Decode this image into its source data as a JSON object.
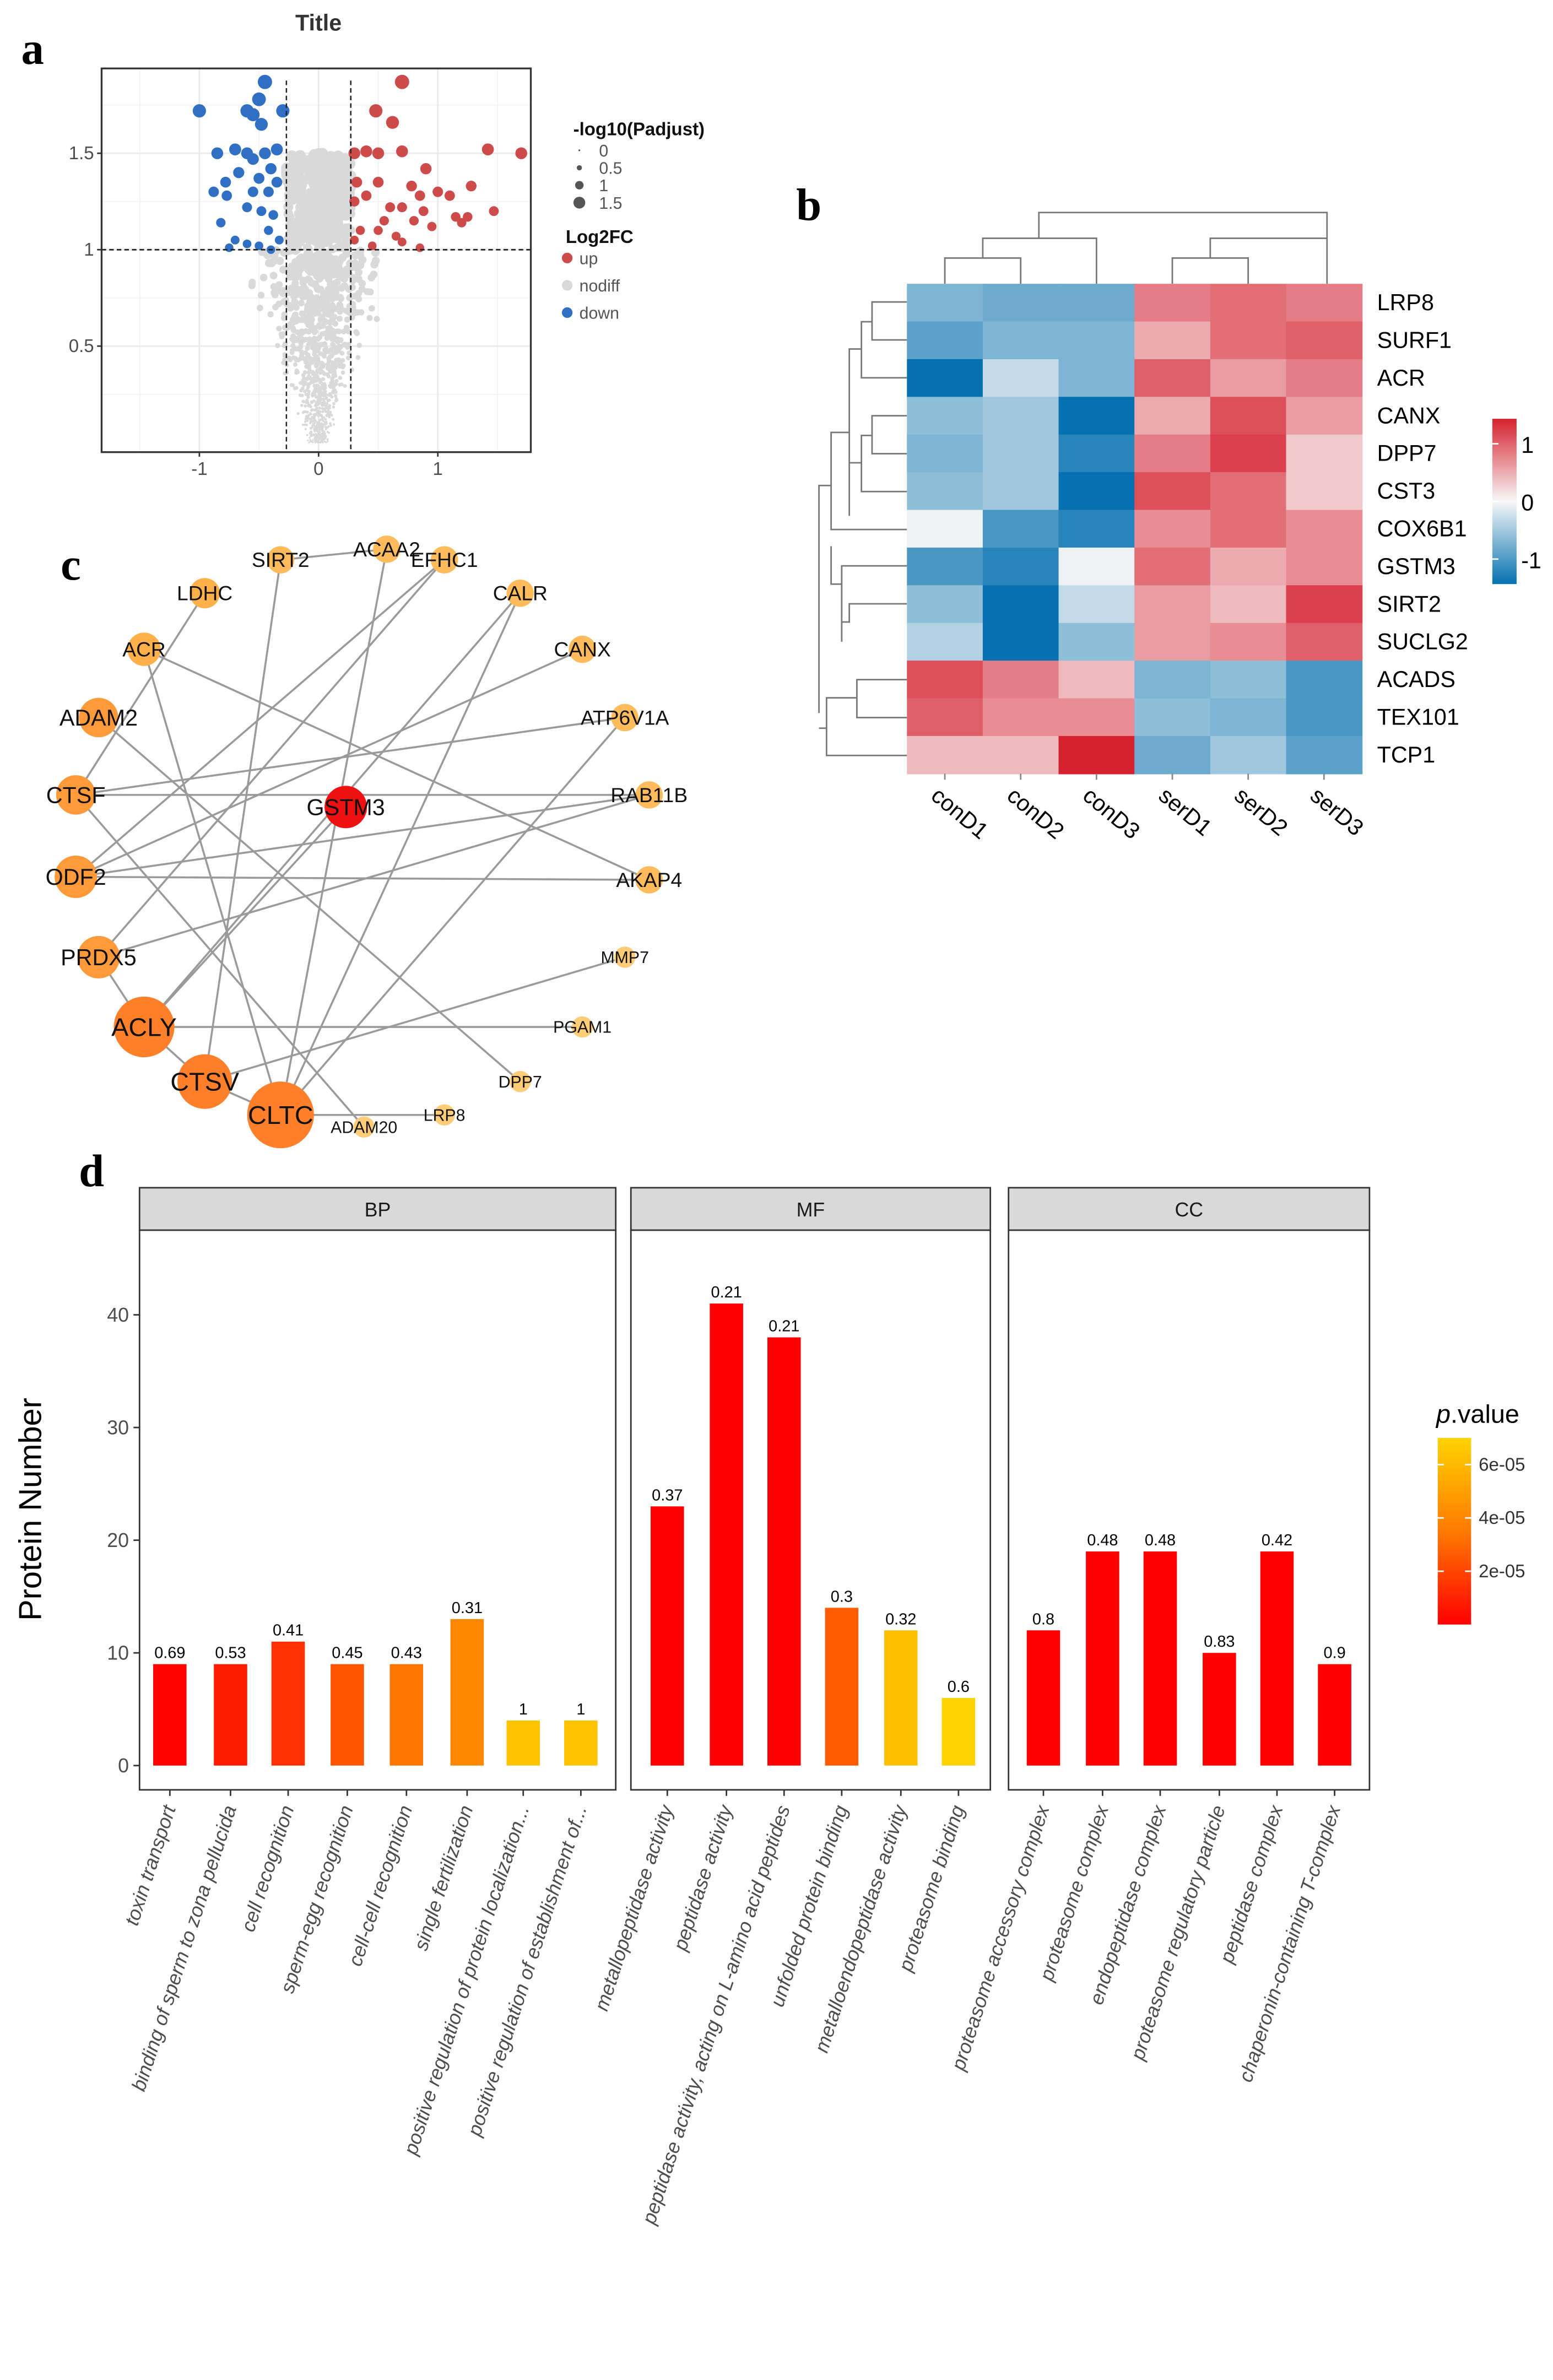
{
  "panel_letters": {
    "a": "a",
    "b": "b",
    "c": "c",
    "d": "d"
  },
  "chart_data": [
    {
      "type": "scatter",
      "panel": "a",
      "title": "Title",
      "xlabel": "",
      "ylabel": "",
      "xlim": [
        -1.82,
        1.78
      ],
      "ylim": [
        -0.05,
        1.94
      ],
      "xticks": [
        "-1",
        "0",
        "1"
      ],
      "xtick_values": [
        -1,
        0,
        1
      ],
      "yticks": [
        "0.5",
        "1",
        "1.5"
      ],
      "ytick_values": [
        0.5,
        1,
        1.5
      ],
      "thresholds": {
        "log2fc": [
          -0.27,
          0.27
        ],
        "neglog10_padj": 1
      },
      "legend_size": {
        "title": "-log10(Padjust)",
        "items": [
          "0",
          "0.5",
          "1",
          "1.5"
        ],
        "values": [
          0,
          0.5,
          1,
          1.5
        ]
      },
      "legend_color": {
        "title": "Log2FC",
        "items": [
          {
            "label": "up",
            "color": "#cd4b4b"
          },
          {
            "label": "nodiff",
            "color": "#d9d9d9"
          },
          {
            "label": "down",
            "color": "#2f6fc4"
          }
        ]
      },
      "grid": true,
      "points_down": [
        [
          -0.45,
          1.87
        ],
        [
          -0.5,
          1.78
        ],
        [
          -1.0,
          1.72
        ],
        [
          -0.6,
          1.72
        ],
        [
          -0.55,
          1.7
        ],
        [
          -0.3,
          1.72
        ],
        [
          -0.48,
          1.65
        ],
        [
          -0.85,
          1.5
        ],
        [
          -0.7,
          1.52
        ],
        [
          -0.6,
          1.5
        ],
        [
          -0.45,
          1.5
        ],
        [
          -0.35,
          1.52
        ],
        [
          -0.55,
          1.47
        ],
        [
          -0.4,
          1.42
        ],
        [
          -0.67,
          1.4
        ],
        [
          -0.78,
          1.35
        ],
        [
          -0.5,
          1.37
        ],
        [
          -0.35,
          1.35
        ],
        [
          -0.88,
          1.3
        ],
        [
          -0.77,
          1.28
        ],
        [
          -0.55,
          1.3
        ],
        [
          -0.42,
          1.3
        ],
        [
          -0.6,
          1.22
        ],
        [
          -0.48,
          1.2
        ],
        [
          -0.38,
          1.18
        ],
        [
          -0.82,
          1.14
        ],
        [
          -0.42,
          1.1
        ],
        [
          -0.7,
          1.05
        ],
        [
          -0.6,
          1.03
        ],
        [
          -0.75,
          1.01
        ],
        [
          -0.5,
          1.02
        ],
        [
          -0.33,
          1.05
        ],
        [
          -0.4,
          1.0
        ]
      ],
      "points_up": [
        [
          0.7,
          1.87
        ],
        [
          0.48,
          1.72
        ],
        [
          0.62,
          1.66
        ],
        [
          0.3,
          1.5
        ],
        [
          0.4,
          1.51
        ],
        [
          0.5,
          1.5
        ],
        [
          0.7,
          1.51
        ],
        [
          1.42,
          1.52
        ],
        [
          1.7,
          1.5
        ],
        [
          0.9,
          1.42
        ],
        [
          0.32,
          1.35
        ],
        [
          0.5,
          1.35
        ],
        [
          0.78,
          1.33
        ],
        [
          1.28,
          1.33
        ],
        [
          0.85,
          1.28
        ],
        [
          1.0,
          1.3
        ],
        [
          1.1,
          1.28
        ],
        [
          0.4,
          1.28
        ],
        [
          0.3,
          1.25
        ],
        [
          0.6,
          1.22
        ],
        [
          0.7,
          1.22
        ],
        [
          0.88,
          1.2
        ],
        [
          1.47,
          1.2
        ],
        [
          1.15,
          1.17
        ],
        [
          1.25,
          1.17
        ],
        [
          0.55,
          1.15
        ],
        [
          0.8,
          1.15
        ],
        [
          1.2,
          1.14
        ],
        [
          0.95,
          1.12
        ],
        [
          0.35,
          1.1
        ],
        [
          0.5,
          1.1
        ],
        [
          0.65,
          1.07
        ],
        [
          0.3,
          1.05
        ],
        [
          0.7,
          1.04
        ],
        [
          0.85,
          1.01
        ],
        [
          0.45,
          1.02
        ]
      ]
    },
    {
      "type": "heatmap",
      "panel": "b",
      "columns": [
        "conD1",
        "conD2",
        "conD3",
        "serD1",
        "serD2",
        "serD3"
      ],
      "rows": [
        "LRP8",
        "SURF1",
        "ACR",
        "CANX",
        "DPP7",
        "CST3",
        "COX6B1",
        "GSTM3",
        "SIRT2",
        "SUCLG2",
        "ACADS",
        "TEX101",
        "TCP1"
      ],
      "values": [
        [
          -0.7,
          -0.8,
          -0.8,
          0.8,
          0.9,
          0.8
        ],
        [
          -0.9,
          -0.7,
          -0.7,
          0.5,
          0.9,
          1.0
        ],
        [
          -1.4,
          -0.3,
          -0.7,
          1.0,
          0.6,
          0.8
        ],
        [
          -0.6,
          -0.5,
          -1.4,
          0.5,
          1.1,
          0.6
        ],
        [
          -0.7,
          -0.5,
          -1.2,
          0.8,
          1.2,
          0.3
        ],
        [
          -0.6,
          -0.5,
          -1.4,
          1.1,
          0.9,
          0.3
        ],
        [
          -0.05,
          -1.0,
          -1.2,
          0.7,
          0.9,
          0.7
        ],
        [
          -1.0,
          -1.2,
          -0.05,
          0.9,
          0.5,
          0.7
        ],
        [
          -0.6,
          -1.4,
          -0.3,
          0.6,
          0.4,
          1.2
        ],
        [
          -0.4,
          -1.4,
          -0.6,
          0.6,
          0.7,
          1.0
        ],
        [
          1.1,
          0.8,
          0.4,
          -0.7,
          -0.6,
          -1.0
        ],
        [
          1.0,
          0.7,
          0.7,
          -0.6,
          -0.7,
          -1.0
        ],
        [
          0.4,
          0.4,
          1.4,
          -0.8,
          -0.5,
          -0.9
        ]
      ],
      "color_scale": {
        "ticks": [
          "1",
          "0",
          "-1"
        ],
        "tick_values": [
          1,
          0,
          -1
        ],
        "range": [
          -1.4,
          1.4
        ],
        "low": "#0571b0",
        "mid": "#f7f7f7",
        "high": "#d6222f"
      }
    },
    {
      "type": "network",
      "panel": "c",
      "nodes": [
        {
          "id": "SIRT2",
          "degree": 1
        },
        {
          "id": "ACAA2",
          "degree": 1
        },
        {
          "id": "EFHC1",
          "degree": 2
        },
        {
          "id": "LDHC",
          "degree": 1
        },
        {
          "id": "CALR",
          "degree": 2
        },
        {
          "id": "ACR",
          "degree": 2
        },
        {
          "id": "CANX",
          "degree": 1
        },
        {
          "id": "ADAM2",
          "degree": 2
        },
        {
          "id": "ATP6V1A",
          "degree": 2
        },
        {
          "id": "CTSF",
          "degree": 3
        },
        {
          "id": "GSTM3",
          "degree": 1,
          "highlight": true
        },
        {
          "id": "RAB11B",
          "degree": 3
        },
        {
          "id": "ODF2",
          "degree": 4
        },
        {
          "id": "AKAP4",
          "degree": 2
        },
        {
          "id": "PRDX5",
          "degree": 3
        },
        {
          "id": "MMP7",
          "degree": 1
        },
        {
          "id": "ACLY",
          "degree": 5
        },
        {
          "id": "PGAM1",
          "degree": 1
        },
        {
          "id": "CTSV",
          "degree": 4
        },
        {
          "id": "DPP7",
          "degree": 1
        },
        {
          "id": "CLTC",
          "degree": 6
        },
        {
          "id": "ADAM20",
          "degree": 1
        },
        {
          "id": "LRP8",
          "degree": 1
        }
      ],
      "edges": [
        [
          "SIRT2",
          "CTSV"
        ],
        [
          "ACAA2",
          "CLTC"
        ],
        [
          "EFHC1",
          "PRDX5"
        ],
        [
          "LDHC",
          "CTSF"
        ],
        [
          "CALR",
          "ACLY"
        ],
        [
          "CALR",
          "CLTC"
        ],
        [
          "ACR",
          "CLTC"
        ],
        [
          "ACR",
          "AKAP4"
        ],
        [
          "CANX",
          "ODF2"
        ],
        [
          "ATP6V1A",
          "CTSF"
        ],
        [
          "ATP6V1A",
          "CLTC"
        ],
        [
          "RAB11B",
          "ODF2"
        ],
        [
          "RAB11B",
          "CTSF"
        ],
        [
          "RAB11B",
          "PRDX5"
        ],
        [
          "ODF2",
          "AKAP4"
        ],
        [
          "GSTM3",
          "ACLY"
        ],
        [
          "MMP7",
          "CTSV"
        ],
        [
          "ACLY",
          "PGAM1"
        ],
        [
          "ACLY",
          "CTSV"
        ],
        [
          "CTSV",
          "CLTC"
        ],
        [
          "CLTC",
          "LRP8"
        ],
        [
          "ADAM2",
          "DPP7"
        ],
        [
          "CTSF",
          "ADAM20"
        ],
        [
          "PRDX5",
          "ACLY"
        ],
        [
          "ODF2",
          "EFHC1"
        ],
        [
          "SIRT2",
          "ACAA2"
        ]
      ]
    },
    {
      "type": "bar",
      "panel": "d",
      "ylabel": "Protein Number",
      "xlabel": "",
      "ylim": [
        -2,
        47
      ],
      "yticks": [
        "0",
        "10",
        "20",
        "30",
        "40"
      ],
      "ytick_values": [
        0,
        10,
        20,
        30,
        40
      ],
      "legend": {
        "title_italic": "p",
        "title_rest": ".value",
        "ticks": [
          "6e-05",
          "4e-05",
          "2e-05"
        ],
        "tick_values": [
          6e-05,
          4e-05,
          2e-05
        ],
        "range": [
          0,
          7e-05
        ],
        "low": "#ff0000",
        "high": "#ffd300"
      },
      "facets": [
        {
          "name": "BP",
          "categories": [
            "toxin transport",
            "binding of sperm to zona pellucida",
            "cell recognition",
            "sperm-egg recognition",
            "cell-cell recognition",
            "single fertilization",
            "positive regulation of protein localization...",
            "positive regulation of establishment of..."
          ],
          "values": [
            9,
            9,
            11,
            9,
            9,
            13,
            4,
            4
          ],
          "labels": [
            "0.69",
            "0.53",
            "0.41",
            "0.45",
            "0.43",
            "0.31",
            "1",
            "1"
          ],
          "pvalues": [
            1e-06,
            8e-06,
            1.4e-05,
            2.4e-05,
            3.4e-05,
            4e-05,
            6.4e-05,
            6.4e-05
          ]
        },
        {
          "name": "MF",
          "categories": [
            "metallopeptidase activity",
            "peptidase activity",
            "peptidase activity, acting on L-amino acid peptides",
            "unfolded protein binding",
            "metalloendopeptidase activity",
            "proteasome binding"
          ],
          "values": [
            23,
            41,
            38,
            14,
            12,
            6
          ],
          "labels": [
            "0.37",
            "0.21",
            "0.21",
            "0.3",
            "0.32",
            "0.6"
          ],
          "pvalues": [
            1e-07,
            1e-07,
            1e-07,
            2.6e-05,
            6.2e-05,
            7e-05
          ]
        },
        {
          "name": "CC",
          "categories": [
            "proteasome accessory complex",
            "proteasome complex",
            "endopeptidase complex",
            "proteasome regulatory particle",
            "peptidase complex",
            "chaperonin-containing T-complex"
          ],
          "values": [
            12,
            19,
            19,
            10,
            19,
            9
          ],
          "labels": [
            "0.8",
            "0.48",
            "0.48",
            "0.83",
            "0.42",
            "0.9"
          ],
          "pvalues": [
            1e-07,
            1e-07,
            1e-07,
            1e-07,
            1e-07,
            1e-07
          ]
        }
      ]
    }
  ]
}
